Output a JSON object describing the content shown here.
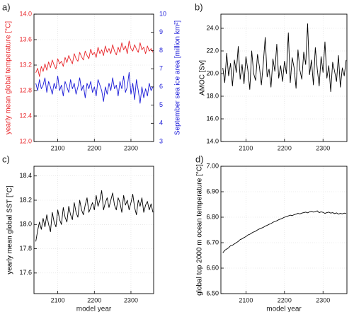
{
  "chart_data": [
    {
      "type": "line",
      "label": "a)",
      "ylabel": "yearly mean global temperature [°C]",
      "y2label": "September sea ice area [million km²]",
      "x": [
        2040,
        2045,
        2050,
        2055,
        2060,
        2065,
        2070,
        2075,
        2080,
        2085,
        2090,
        2095,
        2100,
        2105,
        2110,
        2115,
        2120,
        2125,
        2130,
        2135,
        2140,
        2145,
        2150,
        2155,
        2160,
        2165,
        2170,
        2175,
        2180,
        2185,
        2190,
        2195,
        2200,
        2205,
        2210,
        2215,
        2220,
        2225,
        2230,
        2235,
        2240,
        2245,
        2250,
        2255,
        2260,
        2265,
        2270,
        2275,
        2280,
        2285,
        2290,
        2295,
        2300,
        2305,
        2310,
        2315,
        2320,
        2325,
        2330,
        2335,
        2340,
        2345,
        2350,
        2355,
        2360
      ],
      "xlim": [
        2035,
        2362
      ],
      "xticks": [
        2100,
        2200,
        2300
      ],
      "ylim": [
        12.0,
        14.0
      ],
      "yticks": [
        {
          "value": 12.0,
          "label": "12.0"
        },
        {
          "value": 12.4,
          "label": "12.4"
        },
        {
          "value": 12.8,
          "label": "12.8"
        },
        {
          "value": 13.2,
          "label": "13.2"
        },
        {
          "value": 13.6,
          "label": "13.6"
        },
        {
          "value": 14.0,
          "label": "14.0"
        }
      ],
      "y2lim": [
        3,
        10
      ],
      "y2ticks": [
        3,
        4,
        5,
        6,
        7,
        8,
        9,
        10
      ],
      "grid": true,
      "series": [
        {
          "color": "#e8262a",
          "axis": "y",
          "values": [
            13.08,
            13.15,
            13.02,
            13.18,
            13.1,
            13.22,
            13.12,
            13.25,
            13.16,
            13.28,
            13.2,
            13.14,
            13.3,
            13.22,
            13.26,
            13.18,
            13.32,
            13.24,
            13.35,
            13.28,
            13.22,
            13.38,
            13.3,
            13.26,
            13.4,
            13.33,
            13.28,
            13.42,
            13.35,
            13.3,
            13.45,
            13.36,
            13.4,
            13.32,
            13.48,
            13.38,
            13.44,
            13.35,
            13.5,
            13.4,
            13.46,
            13.38,
            13.52,
            13.42,
            13.36,
            13.48,
            13.4,
            13.55,
            13.44,
            13.5,
            13.38,
            13.58,
            13.46,
            13.42,
            13.52,
            13.45,
            13.4,
            13.55,
            13.44,
            13.48,
            13.38,
            13.5,
            13.42,
            13.46,
            13.4
          ]
        },
        {
          "color": "#1a1ad8",
          "axis": "y2",
          "values": [
            6.2,
            5.8,
            6.4,
            5.9,
            6.1,
            6.5,
            5.7,
            6.3,
            6.0,
            5.6,
            6.2,
            5.9,
            6.6,
            5.8,
            6.1,
            5.5,
            6.3,
            6.0,
            5.7,
            6.4,
            5.9,
            6.2,
            5.6,
            6.0,
            6.5,
            5.8,
            6.1,
            5.4,
            6.2,
            5.9,
            6.3,
            5.7,
            6.0,
            5.5,
            6.4,
            6.1,
            5.8,
            5.2,
            6.0,
            5.6,
            6.2,
            5.8,
            6.5,
            5.9,
            6.1,
            5.5,
            6.3,
            5.9,
            6.6,
            5.7,
            6.0,
            6.8,
            5.6,
            6.2,
            5.3,
            6.4,
            5.8,
            5.1,
            6.0,
            5.4,
            5.9,
            5.5,
            6.2,
            5.8,
            6.0
          ]
        }
      ]
    },
    {
      "type": "line",
      "label": "b)",
      "ylabel": "AMOC [Sv]",
      "x": [
        2040,
        2045,
        2050,
        2055,
        2060,
        2065,
        2070,
        2075,
        2080,
        2085,
        2090,
        2095,
        2100,
        2105,
        2110,
        2115,
        2120,
        2125,
        2130,
        2135,
        2140,
        2145,
        2150,
        2155,
        2160,
        2165,
        2170,
        2175,
        2180,
        2185,
        2190,
        2195,
        2200,
        2205,
        2210,
        2215,
        2220,
        2225,
        2230,
        2235,
        2240,
        2245,
        2250,
        2255,
        2260,
        2265,
        2270,
        2275,
        2280,
        2285,
        2290,
        2295,
        2300,
        2305,
        2310,
        2315,
        2320,
        2325,
        2330,
        2335,
        2340,
        2345,
        2350,
        2355,
        2360
      ],
      "xlim": [
        2035,
        2362
      ],
      "xticks": [
        2100,
        2200,
        2300
      ],
      "ylim": [
        14.0,
        25.25
      ],
      "yticks": [
        {
          "value": 14.0,
          "label": "14.0"
        },
        {
          "value": 16.0,
          "label": "16.0"
        },
        {
          "value": 18.0,
          "label": "18.0"
        },
        {
          "value": 20.0,
          "label": "20.0"
        },
        {
          "value": 22.0,
          "label": "22.0"
        },
        {
          "value": 24.0,
          "label": "24.0"
        }
      ],
      "grid": true,
      "series": [
        {
          "color": "#000000",
          "axis": "y",
          "values": [
            20.5,
            19.2,
            21.8,
            19.8,
            20.9,
            18.9,
            21.2,
            20.1,
            22.4,
            19.5,
            20.8,
            19.1,
            21.5,
            20.3,
            18.6,
            22.0,
            20.0,
            19.4,
            21.7,
            20.6,
            19.0,
            20.9,
            23.2,
            19.7,
            20.4,
            18.8,
            21.3,
            20.2,
            22.6,
            19.6,
            20.7,
            19.3,
            21.1,
            20.0,
            23.6,
            19.2,
            21.4,
            20.5,
            18.7,
            22.1,
            20.3,
            19.5,
            21.9,
            20.8,
            24.4,
            19.9,
            21.2,
            19.0,
            22.3,
            20.4,
            18.9,
            21.5,
            20.1,
            22.8,
            19.6,
            20.7,
            18.4,
            21.0,
            20.2,
            19.3,
            21.6,
            18.8,
            20.5,
            19.8,
            21.2
          ]
        }
      ]
    },
    {
      "type": "line",
      "label": "c)",
      "ylabel": "yearly mean global SST [°C]",
      "xlabel": "model year",
      "x": [
        2040,
        2045,
        2050,
        2055,
        2060,
        2065,
        2070,
        2075,
        2080,
        2085,
        2090,
        2095,
        2100,
        2105,
        2110,
        2115,
        2120,
        2125,
        2130,
        2135,
        2140,
        2145,
        2150,
        2155,
        2160,
        2165,
        2170,
        2175,
        2180,
        2185,
        2190,
        2195,
        2200,
        2205,
        2210,
        2215,
        2220,
        2225,
        2230,
        2235,
        2240,
        2245,
        2250,
        2255,
        2260,
        2265,
        2270,
        2275,
        2280,
        2285,
        2290,
        2295,
        2300,
        2305,
        2310,
        2315,
        2320,
        2325,
        2330,
        2335,
        2340,
        2345,
        2350,
        2355,
        2360
      ],
      "xlim": [
        2035,
        2362
      ],
      "xticks": [
        2100,
        2200,
        2300
      ],
      "ylim": [
        17.43,
        18.48
      ],
      "yticks": [
        17.6,
        17.8,
        {
          "value": 18.0,
          "label": "18.0"
        },
        18.2,
        18.4
      ],
      "grid": true,
      "series": [
        {
          "color": "#000000",
          "axis": "y",
          "values": [
            17.86,
            17.95,
            18.02,
            17.96,
            18.05,
            17.98,
            18.08,
            18.0,
            17.94,
            18.1,
            18.02,
            17.98,
            18.12,
            18.04,
            18.0,
            18.14,
            18.06,
            18.02,
            18.15,
            18.08,
            18.04,
            18.18,
            18.1,
            18.06,
            18.2,
            18.12,
            18.08,
            18.16,
            18.22,
            18.1,
            18.14,
            18.18,
            18.12,
            18.24,
            18.15,
            18.2,
            18.28,
            18.12,
            18.18,
            18.22,
            18.14,
            18.2,
            18.26,
            18.16,
            18.12,
            18.22,
            18.18,
            18.1,
            18.24,
            18.16,
            18.2,
            18.12,
            18.18,
            18.25,
            18.14,
            18.08,
            18.2,
            18.15,
            18.22,
            18.1,
            18.16,
            18.19,
            18.12,
            18.17,
            18.1
          ]
        }
      ]
    },
    {
      "type": "line",
      "label": "d)",
      "ylabel": "global top 2000 m ocean temperature [°C]",
      "xlabel": "model year",
      "x": [
        2040,
        2045,
        2050,
        2055,
        2060,
        2065,
        2070,
        2075,
        2080,
        2085,
        2090,
        2095,
        2100,
        2105,
        2110,
        2115,
        2120,
        2125,
        2130,
        2135,
        2140,
        2145,
        2150,
        2155,
        2160,
        2165,
        2170,
        2175,
        2180,
        2185,
        2190,
        2195,
        2200,
        2205,
        2210,
        2215,
        2220,
        2225,
        2230,
        2235,
        2240,
        2245,
        2250,
        2255,
        2260,
        2265,
        2270,
        2275,
        2280,
        2285,
        2290,
        2295,
        2300,
        2305,
        2310,
        2315,
        2320,
        2325,
        2330,
        2335,
        2340,
        2345,
        2350,
        2355,
        2360
      ],
      "xlim": [
        2035,
        2362
      ],
      "xticks": [
        2100,
        2200,
        2300
      ],
      "ylim": [
        6.5,
        7.0
      ],
      "yticks": [
        {
          "value": 6.5,
          "label": "6.50"
        },
        {
          "value": 6.6,
          "label": "6.60"
        },
        {
          "value": 6.7,
          "label": "6.70"
        },
        {
          "value": 6.8,
          "label": "6.80"
        },
        {
          "value": 6.9,
          "label": "6.90"
        },
        {
          "value": 7.0,
          "label": "7.00"
        }
      ],
      "grid": true,
      "series": [
        {
          "color": "#000000",
          "axis": "y",
          "values": [
            6.66,
            6.67,
            6.675,
            6.68,
            6.688,
            6.69,
            6.695,
            6.7,
            6.705,
            6.712,
            6.715,
            6.72,
            6.724,
            6.73,
            6.733,
            6.738,
            6.742,
            6.745,
            6.75,
            6.754,
            6.757,
            6.76,
            6.765,
            6.768,
            6.772,
            6.775,
            6.78,
            6.783,
            6.786,
            6.79,
            6.793,
            6.796,
            6.8,
            6.802,
            6.805,
            6.808,
            6.806,
            6.81,
            6.812,
            6.815,
            6.813,
            6.816,
            6.818,
            6.82,
            6.817,
            6.821,
            6.823,
            6.82,
            6.822,
            6.825,
            6.818,
            6.821,
            6.819,
            6.815,
            6.818,
            6.82,
            6.816,
            6.818,
            6.814,
            6.817,
            6.812,
            6.815,
            6.813,
            6.816,
            6.814
          ]
        }
      ]
    }
  ]
}
